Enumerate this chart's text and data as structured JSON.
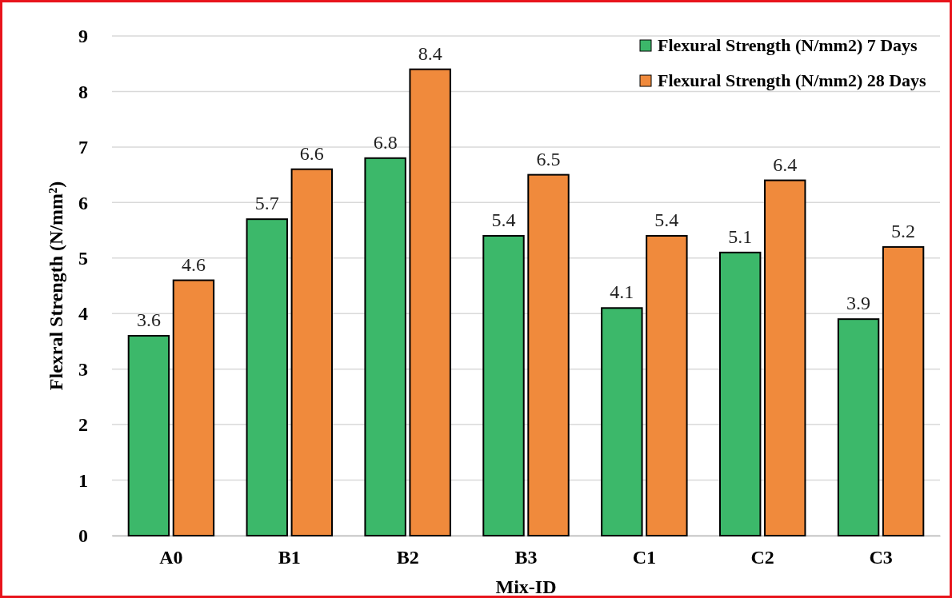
{
  "chart_data": {
    "type": "bar",
    "xlabel": "Mix-ID",
    "ylabel": "Flexral Strength (N/mm²)",
    "categories": [
      "A0",
      "B1",
      "B2",
      "B3",
      "C1",
      "C2",
      "C3"
    ],
    "series": [
      {
        "name": "Flexural Strength (N/mm2) 7 Days",
        "color": "#3cb86a",
        "values": [
          3.6,
          5.7,
          6.8,
          5.4,
          4.1,
          5.1,
          3.9
        ]
      },
      {
        "name": "Flexural Strength (N/mm2) 28 Days",
        "color": "#f08a3c",
        "values": [
          4.6,
          6.6,
          8.4,
          6.5,
          5.4,
          6.4,
          5.2
        ]
      }
    ],
    "ylim": [
      0,
      9
    ],
    "yticks": [
      0,
      1,
      2,
      3,
      4,
      5,
      6,
      7,
      8,
      9
    ],
    "grid": "y",
    "legend": "top right",
    "data_labels": true
  }
}
